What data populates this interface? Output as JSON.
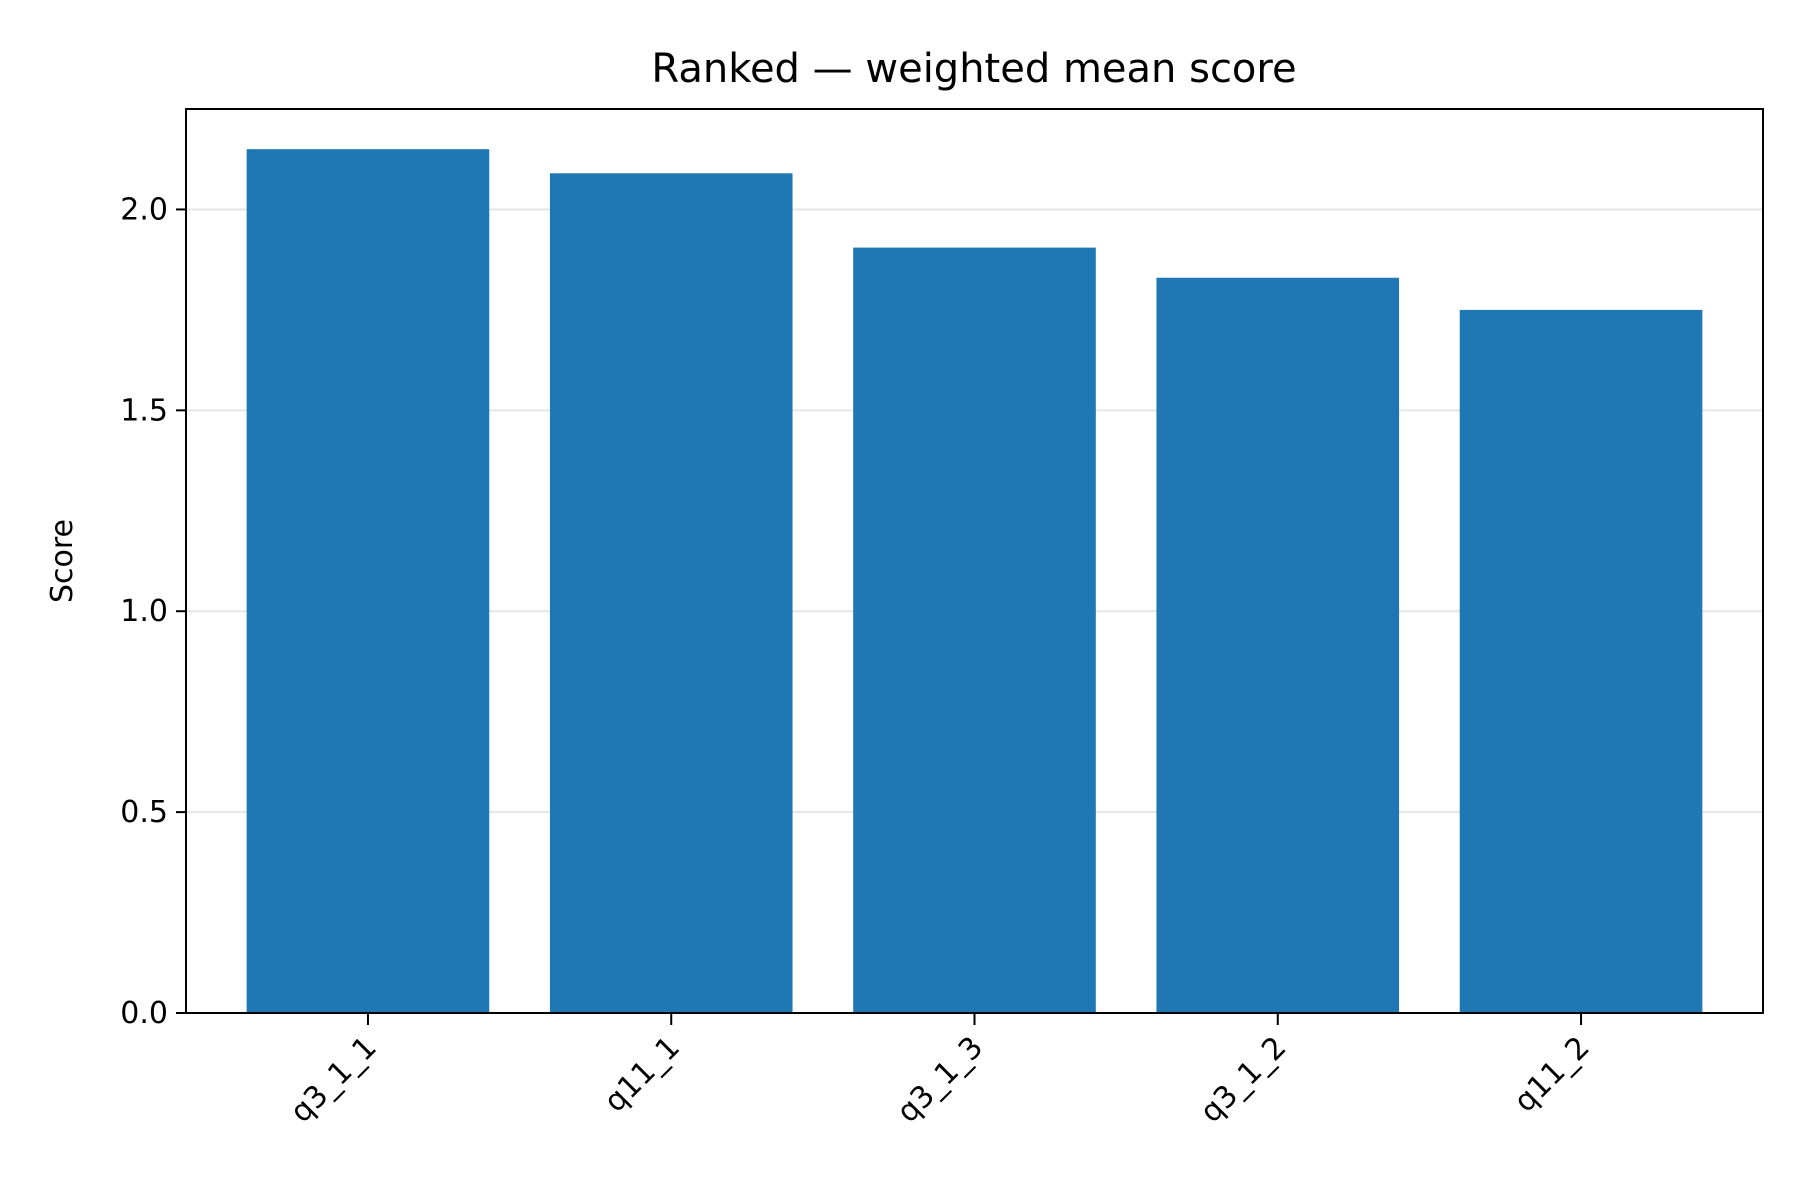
{
  "chart_data": {
    "type": "bar",
    "title": "Ranked — weighted mean score",
    "xlabel": "",
    "ylabel": "Score",
    "categories": [
      "q3_1_1",
      "q11_1",
      "q3_1_3",
      "q3_1_2",
      "q11_2"
    ],
    "values": [
      2.15,
      2.09,
      1.905,
      1.83,
      1.75
    ],
    "ylim": [
      0,
      2.25
    ],
    "yticks": [
      0.0,
      0.5,
      1.0,
      1.5,
      2.0
    ],
    "ytick_labels": [
      "0.0",
      "0.5",
      "1.0",
      "1.5",
      "2.0"
    ],
    "grid": "y",
    "colors": {
      "bar": "#1f77b4",
      "grid": "#e6e6e6",
      "axis": "#000000"
    }
  }
}
